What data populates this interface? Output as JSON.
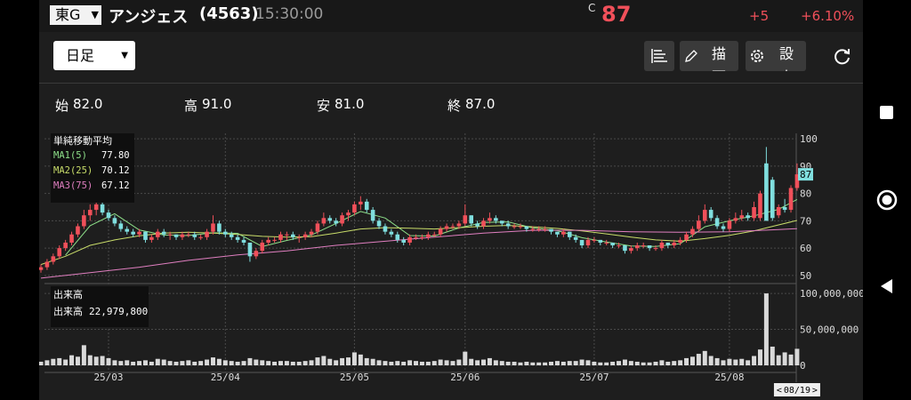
{
  "header": {
    "market": "東G",
    "name": "アンジェス",
    "code": "(4563)",
    "time": "15:30:00",
    "flag": "C",
    "price": "87",
    "change": "+5",
    "change_pct": "+6.10%"
  },
  "toolbar": {
    "period": "日足",
    "draw": "描画",
    "settings": "設定"
  },
  "summary": [
    {
      "label": "始",
      "value": "82.0"
    },
    {
      "label": "高",
      "value": "91.0"
    },
    {
      "label": "安",
      "value": "81.0"
    },
    {
      "label": "終",
      "value": "87.0"
    }
  ],
  "chart_data": {
    "type": "candlestick",
    "ma_title": "単純移動平均",
    "volume_title": "出来高",
    "volume_legend": {
      "label": "出来高",
      "value": "22,979,800"
    },
    "cursor_date": "08/19",
    "up_color": "#f0505a",
    "down_color": "#7fdede",
    "volume_color": "#d9d9d9",
    "grid": true,
    "ylim": [
      48,
      102
    ],
    "yticks": [
      50,
      60,
      70,
      80,
      90,
      100
    ],
    "volume_ylim": [
      0,
      110000000
    ],
    "volume_yticks": [
      0,
      {
        "value": 50000000,
        "label": "50,000,000"
      },
      {
        "value": 100000000,
        "label": "100,000,000"
      }
    ],
    "categories": [
      null,
      null,
      null,
      null,
      null,
      null,
      null,
      null,
      null,
      null,
      null,
      "25/03",
      null,
      null,
      null,
      null,
      null,
      null,
      null,
      null,
      null,
      null,
      null,
      null,
      null,
      null,
      null,
      null,
      null,
      null,
      "25/04",
      null,
      null,
      null,
      null,
      null,
      null,
      null,
      null,
      null,
      null,
      null,
      null,
      null,
      null,
      null,
      null,
      null,
      null,
      null,
      null,
      "25/05",
      null,
      null,
      null,
      null,
      null,
      null,
      null,
      null,
      null,
      null,
      null,
      null,
      null,
      null,
      null,
      null,
      null,
      "25/06",
      null,
      null,
      null,
      null,
      null,
      null,
      null,
      null,
      null,
      null,
      null,
      null,
      null,
      null,
      null,
      null,
      null,
      null,
      null,
      null,
      "25/07",
      null,
      null,
      null,
      null,
      null,
      null,
      null,
      null,
      null,
      null,
      null,
      null,
      null,
      null,
      null,
      null,
      null,
      null,
      null,
      null,
      null,
      "25/08",
      null,
      null,
      null,
      null,
      null,
      null,
      null,
      null,
      null,
      null,
      null
    ],
    "candles": [
      [
        52,
        54,
        51,
        53
      ],
      [
        53,
        56,
        52,
        55
      ],
      [
        55,
        58,
        54,
        57
      ],
      [
        57,
        61,
        56,
        60
      ],
      [
        60,
        63,
        59,
        62
      ],
      [
        62,
        66,
        61,
        65
      ],
      [
        65,
        69,
        64,
        68
      ],
      [
        68,
        74,
        67,
        72
      ],
      [
        72,
        76,
        70,
        74
      ],
      [
        74,
        79,
        72,
        76
      ],
      [
        76,
        78,
        72,
        73
      ],
      [
        73,
        74,
        70,
        71
      ],
      [
        71,
        72,
        68,
        69
      ],
      [
        69,
        70,
        66,
        67
      ],
      [
        67,
        68,
        65,
        66
      ],
      [
        66,
        67,
        64,
        65
      ],
      [
        65,
        67,
        64,
        66
      ],
      [
        66,
        66,
        62,
        63
      ],
      [
        63,
        65,
        62,
        64
      ],
      [
        64,
        67,
        63,
        66
      ],
      [
        66,
        67,
        64,
        65
      ],
      [
        65,
        66,
        63,
        65
      ],
      [
        65,
        65,
        63,
        64
      ],
      [
        64,
        66,
        63,
        65
      ],
      [
        65,
        66,
        64,
        65
      ],
      [
        65,
        66,
        63,
        64
      ],
      [
        64,
        65,
        63,
        64
      ],
      [
        64,
        67,
        63,
        66
      ],
      [
        66,
        72,
        65,
        69
      ],
      [
        69,
        70,
        65,
        66
      ],
      [
        66,
        67,
        64,
        65
      ],
      [
        65,
        66,
        63,
        64
      ],
      [
        64,
        65,
        62,
        63
      ],
      [
        63,
        64,
        61,
        62
      ],
      [
        62,
        62,
        55,
        57
      ],
      [
        57,
        60,
        56,
        59
      ],
      [
        59,
        63,
        58,
        62
      ],
      [
        62,
        64,
        61,
        63
      ],
      [
        63,
        64,
        62,
        63
      ],
      [
        63,
        66,
        62,
        65
      ],
      [
        65,
        66,
        63,
        65
      ],
      [
        65,
        66,
        63,
        64
      ],
      [
        64,
        65,
        62,
        64
      ],
      [
        64,
        66,
        63,
        65
      ],
      [
        65,
        67,
        64,
        66
      ],
      [
        66,
        70,
        65,
        69
      ],
      [
        69,
        73,
        68,
        71
      ],
      [
        71,
        72,
        69,
        70
      ],
      [
        70,
        71,
        68,
        69
      ],
      [
        69,
        73,
        68,
        72
      ],
      [
        72,
        74,
        70,
        73
      ],
      [
        73,
        77,
        72,
        76
      ],
      [
        76,
        79,
        74,
        77
      ],
      [
        77,
        78,
        73,
        74
      ],
      [
        74,
        75,
        69,
        70
      ],
      [
        70,
        71,
        67,
        68
      ],
      [
        68,
        69,
        65,
        66
      ],
      [
        66,
        67,
        64,
        65
      ],
      [
        65,
        66,
        62,
        63
      ],
      [
        63,
        64,
        61,
        62
      ],
      [
        62,
        65,
        61,
        64
      ],
      [
        64,
        65,
        63,
        64
      ],
      [
        64,
        65,
        63,
        64
      ],
      [
        64,
        66,
        63,
        65
      ],
      [
        65,
        66,
        64,
        65
      ],
      [
        65,
        68,
        64,
        67
      ],
      [
        67,
        69,
        66,
        68
      ],
      [
        68,
        69,
        67,
        68
      ],
      [
        68,
        70,
        67,
        69
      ],
      [
        69,
        76,
        68,
        72
      ],
      [
        72,
        72,
        68,
        69
      ],
      [
        69,
        70,
        67,
        68
      ],
      [
        68,
        71,
        67,
        70
      ],
      [
        70,
        73,
        69,
        71
      ],
      [
        71,
        72,
        69,
        70
      ],
      [
        70,
        70,
        68,
        69
      ],
      [
        69,
        70,
        67,
        68
      ],
      [
        68,
        69,
        67,
        68
      ],
      [
        68,
        69,
        67,
        68
      ],
      [
        68,
        68,
        66,
        67
      ],
      [
        67,
        68,
        66,
        67
      ],
      [
        67,
        68,
        66,
        67
      ],
      [
        67,
        68,
        66,
        67
      ],
      [
        67,
        67,
        65,
        66
      ],
      [
        66,
        66,
        64,
        65
      ],
      [
        65,
        67,
        64,
        66
      ],
      [
        66,
        66,
        63,
        64
      ],
      [
        64,
        65,
        62,
        63
      ],
      [
        63,
        63,
        60,
        61
      ],
      [
        61,
        64,
        60,
        63
      ],
      [
        63,
        64,
        62,
        63
      ],
      [
        63,
        63,
        61,
        62
      ],
      [
        62,
        63,
        61,
        62
      ],
      [
        62,
        62,
        60,
        61
      ],
      [
        61,
        62,
        60,
        61
      ],
      [
        61,
        61,
        58,
        59
      ],
      [
        59,
        61,
        58,
        60
      ],
      [
        60,
        62,
        59,
        61
      ],
      [
        61,
        62,
        60,
        61
      ],
      [
        61,
        61,
        59,
        60
      ],
      [
        60,
        61,
        59,
        60
      ],
      [
        60,
        63,
        59,
        62
      ],
      [
        62,
        62,
        60,
        61
      ],
      [
        61,
        63,
        60,
        62
      ],
      [
        62,
        64,
        61,
        63
      ],
      [
        63,
        66,
        62,
        65
      ],
      [
        65,
        68,
        64,
        67
      ],
      [
        67,
        72,
        66,
        70
      ],
      [
        70,
        76,
        69,
        74
      ],
      [
        74,
        75,
        70,
        71
      ],
      [
        71,
        72,
        67,
        68
      ],
      [
        68,
        69,
        66,
        67
      ],
      [
        67,
        71,
        66,
        70
      ],
      [
        70,
        73,
        69,
        71
      ],
      [
        71,
        74,
        70,
        72
      ],
      [
        72,
        73,
        70,
        71
      ],
      [
        71,
        77,
        70,
        75
      ],
      [
        71,
        81,
        70,
        80
      ],
      [
        91,
        97,
        70,
        70
      ],
      [
        85,
        86,
        70,
        71
      ],
      [
        72,
        76,
        71,
        75
      ],
      [
        75,
        78,
        73,
        74
      ],
      [
        74,
        83,
        73,
        82
      ],
      [
        82,
        91,
        81,
        87
      ]
    ],
    "volumes": [
      5000000,
      7000000,
      9000000,
      10000000,
      8000000,
      14000000,
      12000000,
      28000000,
      14000000,
      12000000,
      13000000,
      10000000,
      7000000,
      6000000,
      7000000,
      5000000,
      6000000,
      7000000,
      5000000,
      9000000,
      8000000,
      6000000,
      5000000,
      6000000,
      7000000,
      5000000,
      6000000,
      8000000,
      11000000,
      9000000,
      7000000,
      6000000,
      5000000,
      6000000,
      10000000,
      8000000,
      7000000,
      6000000,
      5000000,
      6000000,
      6000000,
      5000000,
      5000000,
      6000000,
      7000000,
      11000000,
      13000000,
      9000000,
      7000000,
      10000000,
      11000000,
      18000000,
      15000000,
      10000000,
      9000000,
      7000000,
      6000000,
      5000000,
      6000000,
      5000000,
      7000000,
      6000000,
      5000000,
      5000000,
      6000000,
      8000000,
      7000000,
      6000000,
      8000000,
      19000000,
      9000000,
      7000000,
      8000000,
      10000000,
      7000000,
      6000000,
      5000000,
      5000000,
      4000000,
      5000000,
      4000000,
      4000000,
      4000000,
      5000000,
      6000000,
      5000000,
      6000000,
      6000000,
      8000000,
      7000000,
      5000000,
      4000000,
      4000000,
      5000000,
      6000000,
      8000000,
      6000000,
      5000000,
      4000000,
      4000000,
      5000000,
      7000000,
      5000000,
      6000000,
      7000000,
      10000000,
      12000000,
      16000000,
      20000000,
      13000000,
      10000000,
      7000000,
      9000000,
      8000000,
      9000000,
      7000000,
      13000000,
      22000000,
      100000000,
      26000000,
      14000000,
      18000000,
      15000000,
      22979800
    ],
    "series": [
      {
        "name": "MA1(5)",
        "legend_value": "77.80",
        "color": "#8ee08a",
        "x": [
          4,
          8,
          12,
          16,
          20,
          24,
          28,
          32,
          36,
          40,
          44,
          48,
          52,
          56,
          60,
          64,
          68,
          72,
          76,
          80,
          84,
          88,
          92,
          96,
          100,
          104,
          108,
          112,
          116,
          120,
          123
        ],
        "values": [
          57.4,
          68.2,
          72.6,
          66.6,
          64.8,
          64.6,
          65.6,
          65.4,
          60.6,
          62.8,
          64.8,
          69.0,
          73.4,
          71.0,
          64.6,
          64.4,
          67.4,
          69.4,
          69.6,
          67.4,
          66.4,
          63.8,
          62.2,
          60.8,
          60.6,
          61.6,
          67.8,
          70.0,
          71.8,
          74.2,
          77.8
        ]
      },
      {
        "name": "MA2(25)",
        "legend_value": "70.12",
        "color": "#c9dd6a",
        "x": [
          0,
          4,
          8,
          12,
          16,
          20,
          24,
          28,
          32,
          36,
          40,
          44,
          48,
          52,
          56,
          60,
          64,
          68,
          72,
          76,
          80,
          84,
          88,
          92,
          96,
          100,
          104,
          108,
          112,
          116,
          120,
          123
        ],
        "values": [
          54,
          57,
          61,
          63,
          64.5,
          65.5,
          65.8,
          65.5,
          65,
          64.3,
          64,
          64.2,
          65.5,
          67,
          67.5,
          67.3,
          67,
          67.5,
          68,
          68.3,
          67.8,
          67.2,
          66.3,
          65.2,
          64,
          63,
          62.5,
          63.5,
          64.7,
          66.3,
          68.5,
          70.12
        ]
      },
      {
        "name": "MA3(75)",
        "legend_value": "67.12",
        "color": "#e07fc0",
        "x": [
          0,
          8,
          16,
          24,
          32,
          40,
          48,
          56,
          64,
          72,
          80,
          88,
          96,
          104,
          112,
          120,
          123
        ],
        "values": [
          49,
          51,
          53,
          55.5,
          57.5,
          59,
          61,
          62.5,
          64,
          65.5,
          66.5,
          66.5,
          66,
          65.8,
          66,
          66.8,
          67.12
        ]
      }
    ]
  }
}
